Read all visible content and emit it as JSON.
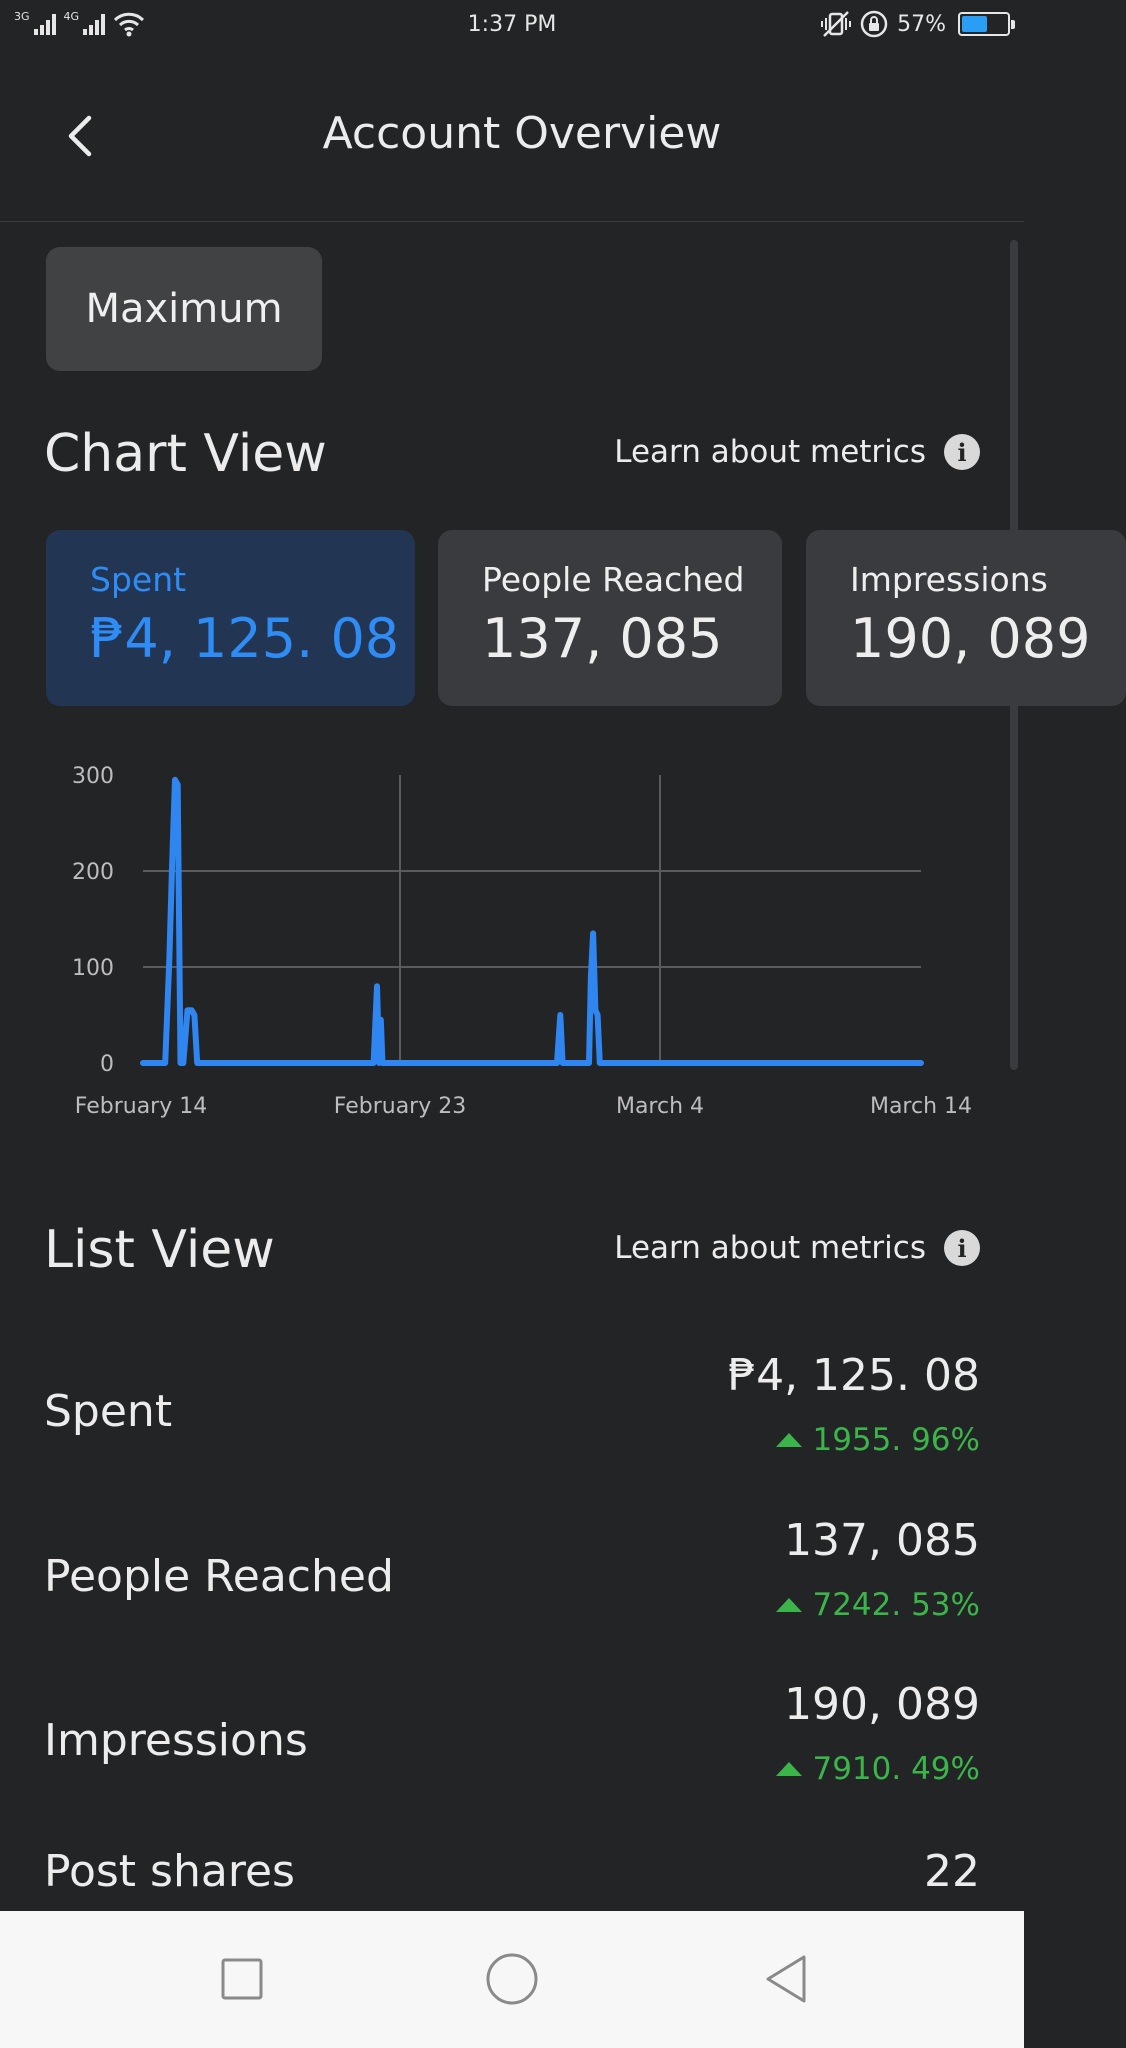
{
  "status_bar": {
    "network_1": "3G",
    "network_2": "4G",
    "time": "1:37 PM",
    "battery_percent": "57%",
    "battery_level": 0.57,
    "icons": [
      "signal-icon",
      "wifi-icon",
      "vibrate-icon",
      "rotation-lock-icon",
      "battery-icon"
    ]
  },
  "header": {
    "title": "Account Overview",
    "back_icon": "chevron-left-icon"
  },
  "period": {
    "label": "Maximum"
  },
  "chart_view": {
    "title": "Chart View",
    "learn_link": "Learn about metrics",
    "cards": [
      {
        "label": "Spent",
        "value": "₱4, 125. 08",
        "active": true
      },
      {
        "label": "People Reached",
        "value": "137, 085",
        "active": false
      },
      {
        "label": "Impressions",
        "value": "190, 089",
        "active": false
      }
    ]
  },
  "chart_data": {
    "type": "line",
    "series_color": "#2f86f0",
    "y_ticks": [
      "300",
      "200",
      "100",
      "0"
    ],
    "x_ticks": [
      "February 14",
      "February 23",
      "March 4",
      "March 14"
    ],
    "ylim": [
      0,
      300
    ],
    "x_range_days": [
      0,
      28
    ],
    "grid": true,
    "x": [
      0,
      0.8,
      0.95,
      1.05,
      1.15,
      1.25,
      1.35,
      1.45,
      1.6,
      1.75,
      1.85,
      1.95,
      2.05,
      2.15,
      2.25,
      8.3,
      8.42,
      8.5,
      8.56,
      8.62,
      8.7,
      14.9,
      15.02,
      15.1,
      16.05,
      16.12,
      16.2,
      16.28,
      16.36,
      16.44,
      16.52,
      28
    ],
    "y": [
      0,
      0,
      110,
      210,
      295,
      290,
      0,
      0,
      55,
      55,
      50,
      0,
      0,
      0,
      0,
      0,
      80,
      0,
      45,
      0,
      0,
      0,
      50,
      0,
      0,
      90,
      135,
      55,
      50,
      0,
      0,
      0
    ],
    "xlabel": "",
    "ylabel": ""
  },
  "list_view": {
    "title": "List View",
    "learn_link": "Learn about metrics",
    "items": [
      {
        "label": "Spent",
        "value": "₱4, 125. 08",
        "change": "1955. 96%"
      },
      {
        "label": "People Reached",
        "value": "137, 085",
        "change": "7242. 53%"
      },
      {
        "label": "Impressions",
        "value": "190, 089",
        "change": "7910. 49%"
      },
      {
        "label": "Post shares",
        "value": "22"
      }
    ]
  },
  "nav_bar": {
    "icons": [
      "recents-square-icon",
      "home-circle-icon",
      "back-triangle-icon"
    ]
  }
}
